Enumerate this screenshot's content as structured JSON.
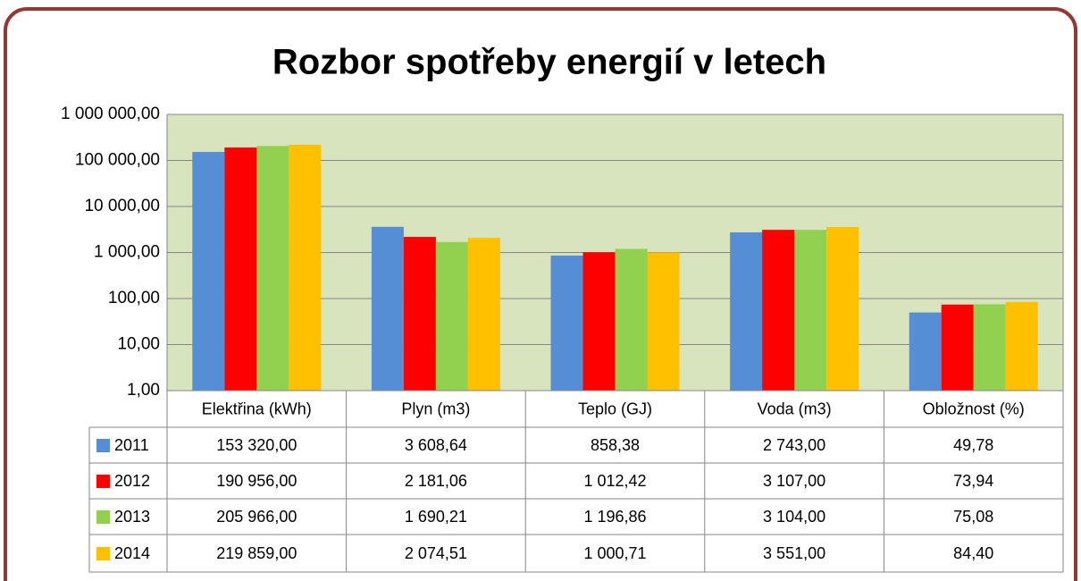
{
  "chart_data": {
    "type": "bar",
    "title": "Rozbor spotřeby energií v letech",
    "log_scale": true,
    "grid": true,
    "categories": [
      "Elektřina (kWh)",
      "Plyn (m3)",
      "Teplo (GJ)",
      "Voda (m3)",
      "Obložnost (%)"
    ],
    "ylim": [
      1,
      1000000
    ],
    "yticks": [
      {
        "value": 1,
        "label": "1,00"
      },
      {
        "value": 10,
        "label": "10,00"
      },
      {
        "value": 100,
        "label": "100,00"
      },
      {
        "value": 1000,
        "label": "1 000,00"
      },
      {
        "value": 10000,
        "label": "10 000,00"
      },
      {
        "value": 100000,
        "label": "100 000,00"
      },
      {
        "value": 1000000,
        "label": "1 000 000,00"
      }
    ],
    "series": [
      {
        "name": "2011",
        "color": "#558ed5",
        "values": [
          153320,
          3608.64,
          858.38,
          2743,
          49.78
        ],
        "value_labels": [
          "153 320,00",
          "3 608,64",
          "858,38",
          "2 743,00",
          "49,78"
        ]
      },
      {
        "name": "2012",
        "color": "#ff0000",
        "values": [
          190956,
          2181.06,
          1012.42,
          3107,
          73.94
        ],
        "value_labels": [
          "190 956,00",
          "2 181,06",
          "1 012,42",
          "3 107,00",
          "73,94"
        ]
      },
      {
        "name": "2013",
        "color": "#92d050",
        "values": [
          205966,
          1690.21,
          1196.86,
          3104,
          75.08
        ],
        "value_labels": [
          "205 966,00",
          "1 690,21",
          "1 196,86",
          "3 104,00",
          "75,08"
        ]
      },
      {
        "name": "2014",
        "color": "#ffc000",
        "values": [
          219859,
          2074.51,
          1000.71,
          3551,
          84.4
        ],
        "value_labels": [
          "219 859,00",
          "2 074,51",
          "1 000,71",
          "3 551,00",
          "84,40"
        ]
      }
    ]
  }
}
